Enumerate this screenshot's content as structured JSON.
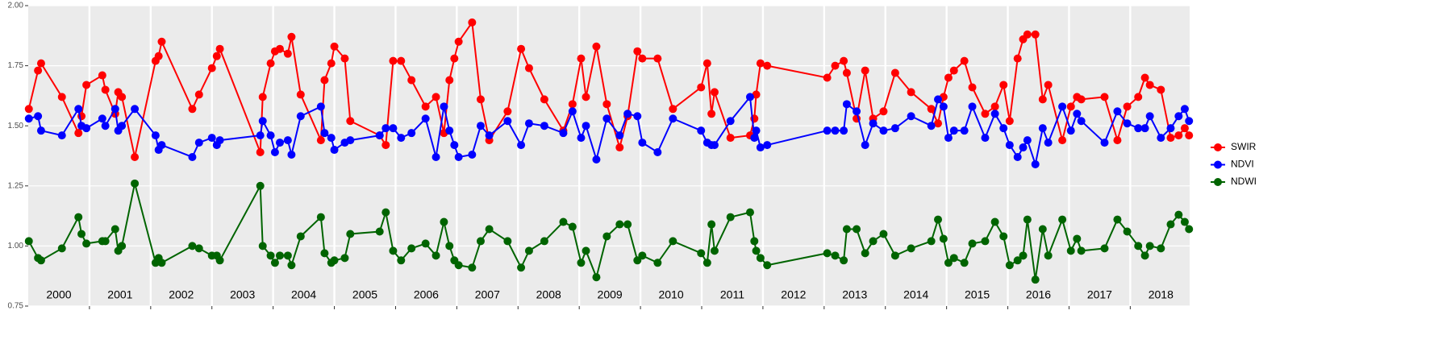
{
  "chart_data": {
    "type": "line",
    "x": [
      2000.01,
      2000.16,
      2000.21,
      2000.55,
      2000.82,
      2000.87,
      2000.95,
      2001.21,
      2001.26,
      2001.42,
      2001.47,
      2001.53,
      2001.74,
      2002.08,
      2002.13,
      2002.18,
      2002.68,
      2002.79,
      2003.0,
      2003.08,
      2003.13,
      2003.79,
      2003.83,
      2003.96,
      2004.03,
      2004.11,
      2004.24,
      2004.3,
      2004.45,
      2004.78,
      2004.84,
      2004.95,
      2005.0,
      2005.17,
      2005.26,
      2005.74,
      2005.84,
      2005.96,
      2006.09,
      2006.26,
      2006.49,
      2006.66,
      2006.79,
      2006.88,
      2006.96,
      2007.03,
      2007.25,
      2007.39,
      2007.53,
      2007.83,
      2008.05,
      2008.18,
      2008.43,
      2008.74,
      2008.89,
      2009.03,
      2009.11,
      2009.28,
      2009.45,
      2009.66,
      2009.79,
      2009.95,
      2010.03,
      2010.28,
      2010.53,
      2010.99,
      2011.09,
      2011.16,
      2011.21,
      2011.47,
      2011.79,
      2011.86,
      2011.89,
      2011.96,
      2012.07,
      2013.05,
      2013.18,
      2013.32,
      2013.37,
      2013.53,
      2013.67,
      2013.8,
      2013.97,
      2014.16,
      2014.42,
      2014.75,
      2014.86,
      2014.95,
      2015.03,
      2015.12,
      2015.29,
      2015.42,
      2015.63,
      2015.79,
      2015.93,
      2016.03,
      2016.16,
      2016.25,
      2016.32,
      2016.45,
      2016.57,
      2016.66,
      2016.89,
      2017.03,
      2017.13,
      2017.2,
      2017.58,
      2017.79,
      2017.95,
      2018.13,
      2018.24,
      2018.32,
      2018.5,
      2018.66,
      2018.79,
      2018.89,
      2018.96
    ],
    "series": [
      {
        "name": "SWIR",
        "color": "#ff0000",
        "values": [
          1.57,
          1.73,
          1.76,
          1.62,
          1.47,
          1.54,
          1.67,
          1.71,
          1.65,
          1.55,
          1.64,
          1.62,
          1.37,
          1.77,
          1.79,
          1.85,
          1.57,
          1.63,
          1.74,
          1.79,
          1.82,
          1.39,
          1.62,
          1.76,
          1.81,
          1.82,
          1.8,
          1.87,
          1.63,
          1.44,
          1.69,
          1.76,
          1.83,
          1.78,
          1.52,
          1.46,
          1.42,
          1.77,
          1.77,
          1.69,
          1.58,
          1.62,
          1.47,
          1.69,
          1.78,
          1.85,
          1.93,
          1.61,
          1.44,
          1.56,
          1.82,
          1.74,
          1.61,
          1.48,
          1.59,
          1.78,
          1.62,
          1.83,
          1.59,
          1.41,
          1.54,
          1.81,
          1.78,
          1.78,
          1.57,
          1.66,
          1.76,
          1.55,
          1.64,
          1.45,
          1.46,
          1.53,
          1.63,
          1.76,
          1.75,
          1.7,
          1.75,
          1.77,
          1.72,
          1.53,
          1.73,
          1.53,
          1.56,
          1.72,
          1.64,
          1.57,
          1.51,
          1.62,
          1.7,
          1.73,
          1.77,
          1.66,
          1.55,
          1.58,
          1.67,
          1.52,
          1.78,
          1.86,
          1.88,
          1.88,
          1.61,
          1.67,
          1.44,
          1.58,
          1.62,
          1.61,
          1.62,
          1.44,
          1.58,
          1.62,
          1.7,
          1.67,
          1.65,
          1.45,
          1.46,
          1.49,
          1.46
        ]
      },
      {
        "name": "NDVI",
        "color": "#0000ff",
        "values": [
          1.53,
          1.54,
          1.48,
          1.46,
          1.57,
          1.5,
          1.49,
          1.53,
          1.5,
          1.57,
          1.48,
          1.5,
          1.57,
          1.46,
          1.4,
          1.42,
          1.37,
          1.43,
          1.45,
          1.42,
          1.44,
          1.46,
          1.52,
          1.46,
          1.39,
          1.43,
          1.44,
          1.38,
          1.54,
          1.58,
          1.47,
          1.45,
          1.4,
          1.43,
          1.44,
          1.46,
          1.49,
          1.49,
          1.45,
          1.47,
          1.53,
          1.37,
          1.58,
          1.48,
          1.42,
          1.37,
          1.38,
          1.5,
          1.46,
          1.52,
          1.42,
          1.51,
          1.5,
          1.47,
          1.56,
          1.45,
          1.5,
          1.36,
          1.53,
          1.46,
          1.55,
          1.54,
          1.43,
          1.39,
          1.53,
          1.48,
          1.43,
          1.42,
          1.42,
          1.52,
          1.62,
          1.45,
          1.48,
          1.41,
          1.42,
          1.48,
          1.48,
          1.48,
          1.59,
          1.56,
          1.42,
          1.51,
          1.48,
          1.49,
          1.54,
          1.5,
          1.61,
          1.58,
          1.45,
          1.48,
          1.48,
          1.58,
          1.45,
          1.55,
          1.49,
          1.42,
          1.37,
          1.41,
          1.44,
          1.34,
          1.49,
          1.43,
          1.58,
          1.48,
          1.55,
          1.52,
          1.43,
          1.56,
          1.51,
          1.49,
          1.49,
          1.54,
          1.45,
          1.49,
          1.54,
          1.57,
          1.52
        ]
      },
      {
        "name": "NDWI",
        "color": "#006400",
        "values": [
          1.02,
          0.95,
          0.94,
          0.99,
          1.12,
          1.05,
          1.01,
          1.02,
          1.02,
          1.07,
          0.98,
          1.0,
          1.26,
          0.93,
          0.95,
          0.93,
          1.0,
          0.99,
          0.96,
          0.96,
          0.94,
          1.25,
          1.0,
          0.96,
          0.93,
          0.96,
          0.96,
          0.92,
          1.04,
          1.12,
          0.97,
          0.93,
          0.94,
          0.95,
          1.05,
          1.06,
          1.14,
          0.98,
          0.94,
          0.99,
          1.01,
          0.96,
          1.1,
          1.0,
          0.94,
          0.92,
          0.91,
          1.02,
          1.07,
          1.02,
          0.91,
          0.98,
          1.02,
          1.1,
          1.08,
          0.93,
          0.98,
          0.87,
          1.04,
          1.09,
          1.09,
          0.94,
          0.96,
          0.93,
          1.02,
          0.97,
          0.93,
          1.09,
          0.98,
          1.12,
          1.14,
          1.02,
          0.98,
          0.95,
          0.92,
          0.97,
          0.96,
          0.94,
          1.07,
          1.07,
          0.97,
          1.02,
          1.05,
          0.96,
          0.99,
          1.02,
          1.11,
          1.03,
          0.93,
          0.95,
          0.93,
          1.01,
          1.02,
          1.1,
          1.04,
          0.92,
          0.94,
          0.96,
          1.11,
          0.86,
          1.07,
          0.96,
          1.11,
          0.98,
          1.03,
          0.98,
          0.99,
          1.11,
          1.06,
          1.0,
          0.96,
          1.0,
          0.99,
          1.09,
          1.13,
          1.1,
          1.07
        ]
      }
    ],
    "year_labels": [
      "2000",
      "2001",
      "2002",
      "2003",
      "2004",
      "2005",
      "2006",
      "2007",
      "2008",
      "2009",
      "2010",
      "2011",
      "2012",
      "2013",
      "2014",
      "2015",
      "2016",
      "2017",
      "2018"
    ],
    "xlim": [
      2000,
      2018.97
    ],
    "xticks": [
      2001,
      2002,
      2003,
      2004,
      2005,
      2006,
      2007,
      2008,
      2009,
      2010,
      2011,
      2012,
      2013,
      2014,
      2015,
      2016,
      2017,
      2018
    ],
    "ylim": [
      0.75,
      2.0
    ],
    "yticks": [
      0.75,
      {
        "value": 1.0,
        "label": "1.00"
      },
      1.25,
      {
        "value": 1.5,
        "label": "1.50"
      },
      1.75,
      {
        "value": 2.0,
        "label": "2.00"
      }
    ],
    "grid": true,
    "legend": "right"
  }
}
